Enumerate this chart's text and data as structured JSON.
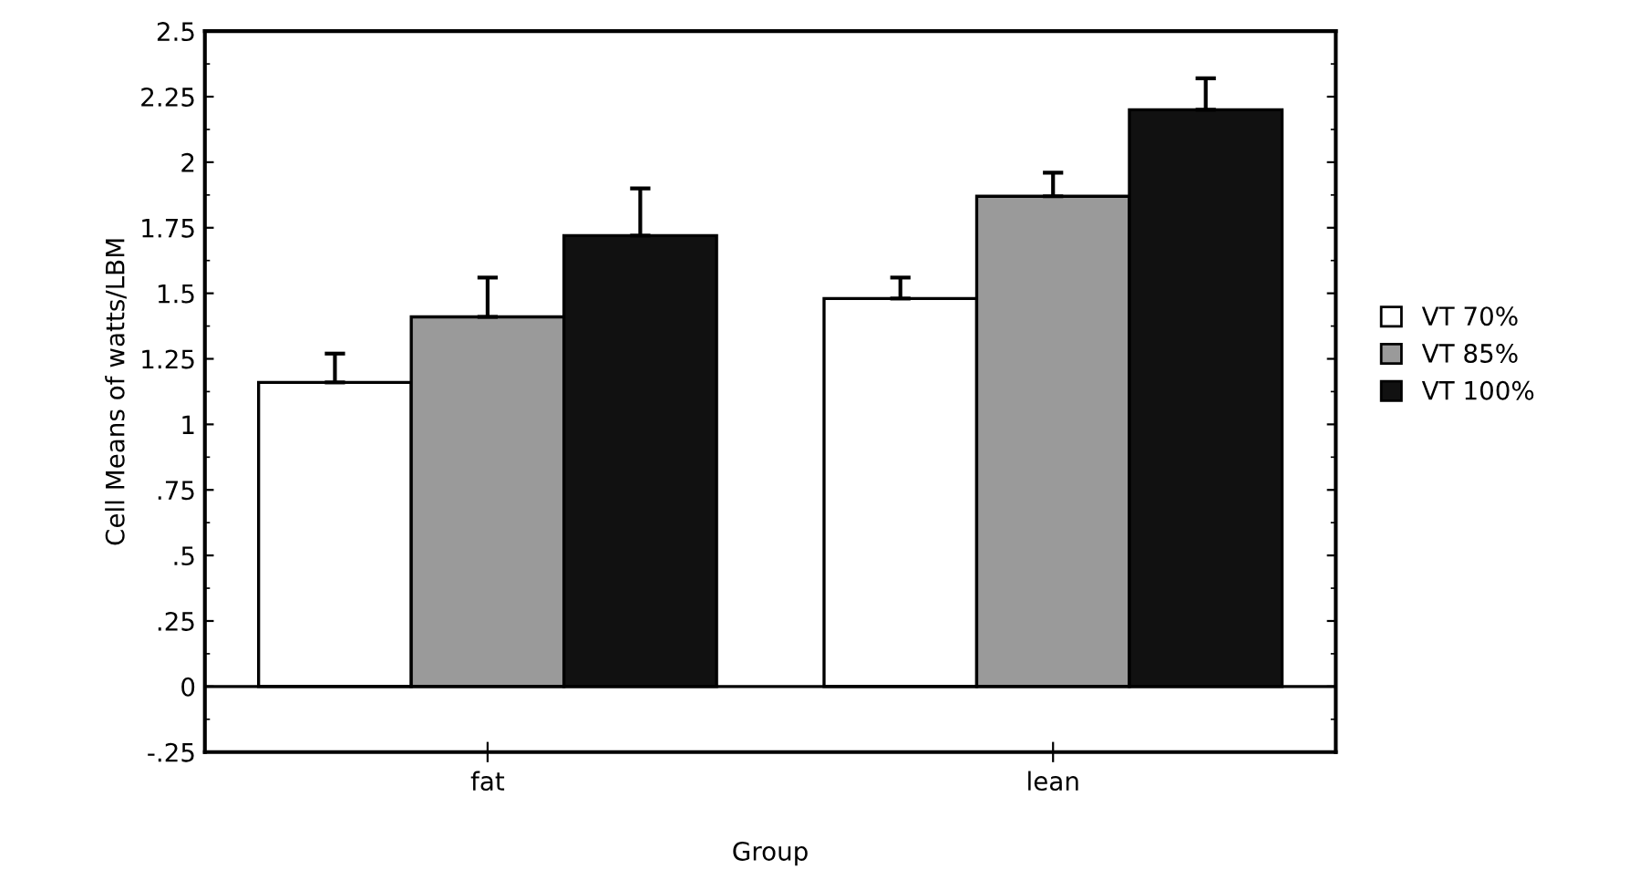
{
  "chart_data": {
    "type": "bar",
    "xlabel": "Group",
    "ylabel": "Cell Means of watts/LBM",
    "categories": [
      "fat",
      "lean"
    ],
    "series": [
      {
        "name": "VT 70%",
        "color": "#ffffff",
        "values": [
          1.16,
          1.48
        ],
        "errors": [
          [
            1.16,
            1.27
          ],
          [
            1.48,
            1.56
          ]
        ]
      },
      {
        "name": "VT 85%",
        "color": "#9a9a9a",
        "values": [
          1.41,
          1.87
        ],
        "errors": [
          [
            1.41,
            1.56
          ],
          [
            1.87,
            1.96
          ]
        ]
      },
      {
        "name": "VT 100%",
        "color": "#111111",
        "values": [
          1.72,
          2.2
        ],
        "errors": [
          [
            1.72,
            1.9
          ],
          [
            2.2,
            2.32
          ]
        ]
      }
    ],
    "ylim": [
      -0.25,
      2.5
    ],
    "yticks": [
      2.5,
      2.25,
      2,
      1.75,
      1.5,
      1.25,
      1,
      {
        "value": 0.75,
        "label": ".75"
      },
      {
        "value": 0.5,
        "label": ".5"
      },
      {
        "value": 0.25,
        "label": ".25"
      },
      0,
      {
        "value": -0.25,
        "label": "-.25"
      }
    ],
    "ref_lines": [
      {
        "axis": "y",
        "value": 0,
        "label": null,
        "color": "#000000"
      }
    ],
    "grid": false,
    "legend": "right"
  }
}
